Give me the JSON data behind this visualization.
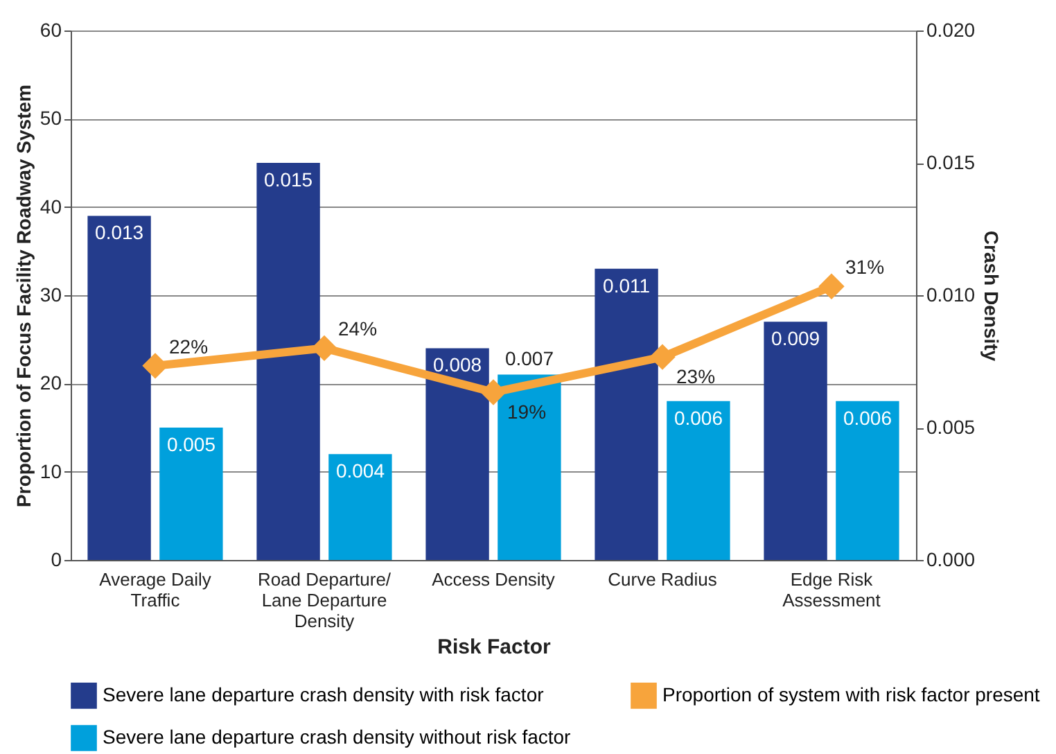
{
  "chart_data": {
    "type": "bar",
    "xlabel": "Risk Factor",
    "ylabel": "Proportion of Focus Facility Roadway System",
    "y2label": "Crash Density",
    "categories": [
      "Average Daily Traffic",
      "Road Departure/ Lane Departure Density",
      "Access Density",
      "Curve Radius",
      "Edge Risk Assessment"
    ],
    "series": [
      {
        "name": "Severe lane departure crash density with risk factor",
        "color": "#243c8c",
        "axis": "y2",
        "values": [
          0.013,
          0.015,
          0.008,
          0.011,
          0.009
        ],
        "value_labels": [
          "0.013",
          "0.015",
          "0.008",
          "0.011",
          "0.009"
        ]
      },
      {
        "name": "Severe lane departure crash density without risk factor",
        "color": "#00a0dc",
        "axis": "y2",
        "values": [
          0.005,
          0.004,
          0.007,
          0.006,
          0.006
        ],
        "value_labels": [
          "0.005",
          "0.004",
          "0.007",
          "0.006",
          "0.006"
        ]
      },
      {
        "name": "Proportion of system with risk factor present",
        "type": "line",
        "color": "#f7a43c",
        "marker": "diamond",
        "values": [
          22,
          24,
          19,
          23,
          31
        ],
        "value_labels": [
          "22%",
          "24%",
          "19%",
          "23%",
          "31%"
        ]
      }
    ],
    "ylim": [
      0,
      60
    ],
    "yticks": [
      0,
      10,
      20,
      30,
      40,
      50,
      60
    ],
    "y2lim": [
      0,
      0.02
    ],
    "y2ticks": [
      {
        "value": 0,
        "label": "0.000"
      },
      {
        "value": 0.005,
        "label": "0.005"
      },
      {
        "value": 0.01,
        "label": "0.010"
      },
      {
        "value": 0.015,
        "label": "0.015"
      },
      {
        "value": 0.02,
        "label": "0.020"
      }
    ],
    "grid": "y",
    "legend": "bottom"
  }
}
